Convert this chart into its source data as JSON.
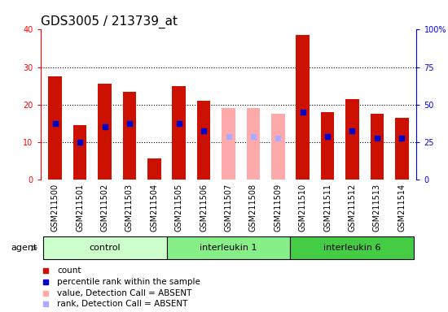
{
  "title": "GDS3005 / 213739_at",
  "samples": [
    "GSM211500",
    "GSM211501",
    "GSM211502",
    "GSM211503",
    "GSM211504",
    "GSM211505",
    "GSM211506",
    "GSM211507",
    "GSM211508",
    "GSM211509",
    "GSM211510",
    "GSM211511",
    "GSM211512",
    "GSM211513",
    "GSM211514"
  ],
  "absent": [
    false,
    false,
    false,
    false,
    false,
    false,
    false,
    true,
    true,
    true,
    false,
    false,
    false,
    false,
    false
  ],
  "red_values": [
    27.5,
    14.5,
    25.5,
    23.5,
    5.5,
    25.0,
    21.0,
    19.0,
    19.0,
    17.5,
    38.5,
    18.0,
    21.5,
    17.5,
    16.5
  ],
  "blue_values": [
    15.0,
    10.0,
    14.0,
    15.0,
    null,
    15.0,
    13.0,
    11.5,
    11.5,
    11.0,
    18.0,
    11.5,
    13.0,
    11.0,
    11.0
  ],
  "groups": [
    {
      "label": "control",
      "start": 0,
      "end": 5,
      "color": "#ccffcc"
    },
    {
      "label": "interleukin 1",
      "start": 5,
      "end": 10,
      "color": "#88ee88"
    },
    {
      "label": "interleukin 6",
      "start": 10,
      "end": 15,
      "color": "#44cc44"
    }
  ],
  "ylim_left": [
    0,
    40
  ],
  "ylim_right": [
    0,
    100
  ],
  "yticks_left": [
    0,
    10,
    20,
    30,
    40
  ],
  "yticks_right": [
    0,
    25,
    50,
    75,
    100
  ],
  "ytick_labels_right": [
    "0",
    "25",
    "50",
    "75",
    "100%"
  ],
  "bar_width": 0.55,
  "red_color": "#cc1100",
  "absent_red_color": "#ffaaaa",
  "blue_color": "#0000cc",
  "absent_blue_color": "#aaaaff",
  "xtick_bg": "#cccccc",
  "plot_bg": "#ffffff",
  "title_fontsize": 11,
  "tick_fontsize": 7,
  "legend_fontsize": 7.5,
  "group_fontsize": 8,
  "agent_fontsize": 8
}
